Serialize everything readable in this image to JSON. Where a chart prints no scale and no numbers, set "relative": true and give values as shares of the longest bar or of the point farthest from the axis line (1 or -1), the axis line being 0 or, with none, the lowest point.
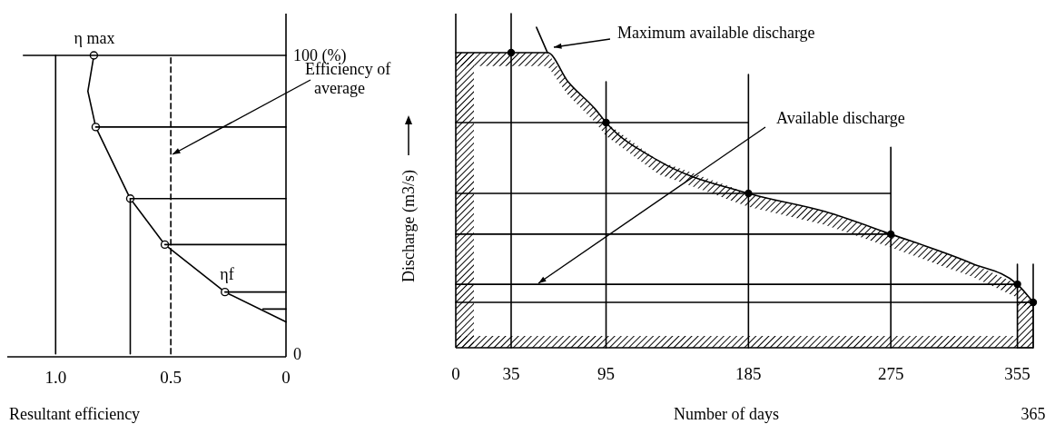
{
  "chart_data": [
    {
      "type": "line",
      "xlabel": "Resultant efficiency",
      "xlim": [
        1.21,
        0
      ],
      "xticks": [
        {
          "value": 1,
          "label": "1.0"
        },
        0.5,
        0
      ],
      "y2lim": [
        -1,
        114
      ],
      "y2ticks": [
        0,
        {
          "value": 100,
          "label": "100 (%)"
        }
      ],
      "annotations": [
        "η max",
        "ηf",
        "Efficiency of average"
      ],
      "series": [
        {
          "axis": "y2",
          "color": "#000000",
          "x": [
            0.834,
            0.86,
            0.826,
            0.676,
            0.526,
            0.265,
            0
          ],
          "values": [
            100,
            88,
            76,
            52,
            36.6,
            20.7,
            10.7
          ]
        },
        {
          "type": "scatter",
          "marker": "circle",
          "axis": "y2",
          "color": "#000000",
          "x": [
            0.834,
            0.826,
            0.676,
            0.526,
            0.265
          ],
          "values": [
            100,
            76,
            52,
            36.6,
            20.7
          ]
        },
        {
          "axis": "y2",
          "color": "#000000",
          "x": [
            1.14,
            0
          ],
          "values": [
            100,
            100
          ]
        },
        {
          "axis": "y2",
          "color": "#000000",
          "x": [
            0.826,
            0
          ],
          "values": [
            76,
            76
          ]
        },
        {
          "axis": "y2",
          "color": "#000000",
          "x": [
            0.676,
            0
          ],
          "values": [
            52,
            52
          ]
        },
        {
          "axis": "y2",
          "color": "#000000",
          "x": [
            0.526,
            0
          ],
          "values": [
            36.6,
            36.6
          ]
        },
        {
          "axis": "y2",
          "color": "#000000",
          "x": [
            0.265,
            0
          ],
          "values": [
            20.7,
            20.7
          ]
        },
        {
          "axis": "y2",
          "color": "#000000",
          "x": [
            0.1,
            0
          ],
          "values": [
            15,
            15
          ]
        },
        {
          "axis": "y2",
          "color": "#000000",
          "x": [
            1,
            1
          ],
          "values": [
            0,
            100
          ]
        },
        {
          "axis": "y2",
          "color": "#000000",
          "x": [
            0.676,
            0.676
          ],
          "values": [
            0,
            52
          ]
        },
        {
          "axis": "y2",
          "color": "#000000",
          "line_style": "dashed",
          "x": [
            0.5,
            0.5
          ],
          "values": [
            0,
            100
          ]
        }
      ]
    },
    {
      "type": "line",
      "xlabel": "Number of days",
      "ylabel": "Discharge (m3/s)",
      "relative": true,
      "xlim": [
        0,
        365
      ],
      "xticks": [
        0,
        35,
        95,
        185,
        275,
        355
      ],
      "annotations": [
        "Maximum available discharge",
        "Available discharge",
        "365"
      ],
      "series": [
        {
          "color": "#000000",
          "x": [
            51,
            58
          ],
          "values": [
            0.959,
            0.883
          ]
        },
        {
          "color": "#000000",
          "x": [
            0,
            35,
            58,
            71,
            88,
            95,
            128,
            185,
            233,
            275,
            326,
            355,
            365
          ],
          "values": [
            0.883,
            0.883,
            0.883,
            0.796,
            0.715,
            0.674,
            0.56,
            0.462,
            0.408,
            0.34,
            0.253,
            0.19,
            0.136
          ],
          "lower": [
            0.843,
            0.843,
            0.843,
            0.756,
            0.675,
            0.634,
            0.52,
            0.422,
            0.368,
            0.3,
            0.213,
            0.15,
            0.096
          ],
          "upper": [
            0.883,
            0.883,
            0.883,
            0.796,
            0.715,
            0.674,
            0.56,
            0.462,
            0.408,
            0.34,
            0.253,
            0.19,
            0.136
          ]
        },
        {
          "type": "scatter",
          "marker": "circle",
          "color": "#000000",
          "x": [
            35,
            95,
            185,
            275,
            355,
            365
          ],
          "values": [
            0.883,
            0.674,
            0.462,
            0.34,
            0.19,
            0.136
          ]
        },
        {
          "color": "#000000",
          "x": [
            0,
            185
          ],
          "values": [
            0.674,
            0.674
          ]
        },
        {
          "color": "#000000",
          "x": [
            0,
            275
          ],
          "values": [
            0.462,
            0.462
          ]
        },
        {
          "color": "#000000",
          "x": [
            0,
            275
          ],
          "values": [
            0.34,
            0.34
          ]
        },
        {
          "color": "#000000",
          "x": [
            0,
            355
          ],
          "values": [
            0.19,
            0.19
          ]
        },
        {
          "color": "#000000",
          "x": [
            0,
            365
          ],
          "values": [
            0.136,
            0.136
          ]
        },
        {
          "color": "#000000",
          "x": [
            35,
            35
          ],
          "values": [
            0,
            1
          ]
        },
        {
          "color": "#000000",
          "x": [
            95,
            95
          ],
          "values": [
            0,
            0.796
          ]
        },
        {
          "color": "#000000",
          "x": [
            185,
            185
          ],
          "values": [
            0,
            0.818
          ]
        },
        {
          "color": "#000000",
          "x": [
            275,
            275
          ],
          "values": [
            0,
            0.6
          ]
        },
        {
          "color": "#000000",
          "x": [
            355,
            355
          ],
          "values": [
            0,
            0.25
          ]
        },
        {
          "color": "#000000",
          "x": [
            365,
            365
          ],
          "values": [
            0,
            0.25
          ]
        }
      ]
    }
  ]
}
